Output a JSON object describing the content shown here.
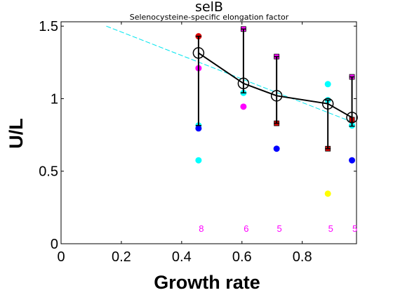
{
  "chart_data": {
    "type": "scatter",
    "title": "selB",
    "subtitle": "Selenocysteine-specific elongation factor",
    "xlabel": "Growth rate",
    "ylabel": "U/L",
    "xlim": [
      0,
      0.98
    ],
    "ylim": [
      0,
      1.53
    ],
    "xticks": [
      0,
      0.2,
      0.4,
      0.6,
      0.8
    ],
    "xtick_labels": [
      "0",
      "0.2",
      "0.4",
      "0.6",
      "0.8"
    ],
    "yticks": [
      0,
      0.5,
      1,
      1.5
    ],
    "ytick_labels": [
      "0",
      "0.5",
      "1",
      "1.5"
    ],
    "colors": {
      "mean_line": "#000000",
      "fit_line": "#00e5ee",
      "replicate_blue": "#0000ff",
      "replicate_cyan": "#00ffff",
      "replicate_magenta": "#ff00ff",
      "replicate_yellow": "#ffff00",
      "replicate_red": "#dd0000",
      "n_label": "#ff00ff"
    },
    "x": [
      0.456,
      0.605,
      0.715,
      0.885,
      0.965
    ],
    "mean": [
      1.315,
      1.105,
      1.02,
      0.965,
      0.87
    ],
    "error_upper": [
      1.43,
      1.48,
      1.29,
      0.99,
      1.15
    ],
    "error_lower": [
      0.815,
      1.04,
      0.83,
      0.655,
      0.81
    ],
    "n_labels": [
      "8",
      "6",
      "5",
      "5",
      "5"
    ],
    "fit_line": {
      "x": [
        0.15,
        0.965
      ],
      "y": [
        1.5,
        0.84
      ]
    },
    "replicates": [
      {
        "x": 0.456,
        "y": 1.43,
        "color": "red"
      },
      {
        "x": 0.456,
        "y": 1.21,
        "color": "magenta"
      },
      {
        "x": 0.456,
        "y": 0.815,
        "color": "cyan"
      },
      {
        "x": 0.456,
        "y": 0.795,
        "color": "blue"
      },
      {
        "x": 0.456,
        "y": 0.575,
        "color": "cyan"
      },
      {
        "x": 0.605,
        "y": 1.04,
        "color": "cyan"
      },
      {
        "x": 0.605,
        "y": 0.945,
        "color": "magenta"
      },
      {
        "x": 0.715,
        "y": 0.655,
        "color": "blue"
      },
      {
        "x": 0.885,
        "y": 1.1,
        "color": "cyan"
      },
      {
        "x": 0.885,
        "y": 0.99,
        "color": "cyan"
      },
      {
        "x": 0.885,
        "y": 0.345,
        "color": "yellow"
      },
      {
        "x": 0.965,
        "y": 0.815,
        "color": "cyan"
      },
      {
        "x": 0.965,
        "y": 0.575,
        "color": "blue"
      }
    ],
    "square_markers": [
      {
        "x": 0.605,
        "y": 1.48,
        "color": "magenta"
      },
      {
        "x": 0.715,
        "y": 1.29,
        "color": "magenta"
      },
      {
        "x": 0.715,
        "y": 0.83,
        "color": "red"
      },
      {
        "x": 0.885,
        "y": 0.655,
        "color": "red"
      },
      {
        "x": 0.965,
        "y": 1.15,
        "color": "magenta"
      },
      {
        "x": 0.965,
        "y": 0.855,
        "color": "red"
      }
    ]
  }
}
